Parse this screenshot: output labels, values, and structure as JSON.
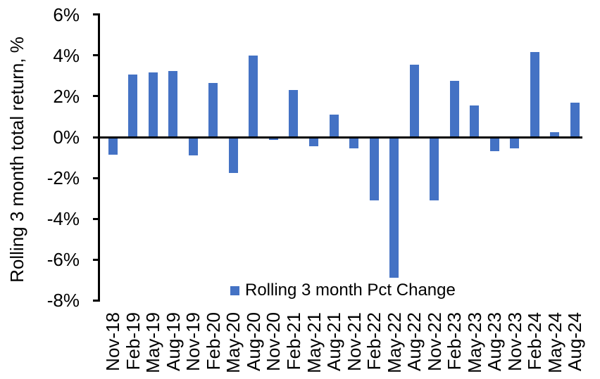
{
  "chart_data": {
    "type": "bar",
    "title": "",
    "ylabel": "Rolling 3 month total return, %",
    "xlabel": "",
    "legend": "Rolling 3 month Pct Change",
    "legend_position": "bottom-center-inside",
    "grid": false,
    "ylim": [
      -8,
      6
    ],
    "ytick_values": [
      6,
      4,
      2,
      0,
      -2,
      -4,
      -6,
      -8
    ],
    "ytick_labels": [
      "6%",
      "4%",
      "2%",
      "0%",
      "-2%",
      "-4%",
      "-6%",
      "-8%"
    ],
    "categories": [
      "Nov-18",
      "Feb-19",
      "May-19",
      "Aug-19",
      "Nov-19",
      "Feb-20",
      "May-20",
      "Aug-20",
      "Nov-20",
      "Feb-21",
      "May-21",
      "Aug-21",
      "Nov-21",
      "Feb-22",
      "May-22",
      "Aug-22",
      "Nov-22",
      "Feb-23",
      "May-23",
      "Aug-23",
      "Nov-23",
      "Feb-24",
      "May-24",
      "Aug-24"
    ],
    "values": [
      -0.85,
      3.05,
      3.15,
      3.25,
      -0.9,
      2.65,
      -1.75,
      4.0,
      -0.15,
      2.3,
      -0.45,
      1.1,
      -0.55,
      -3.1,
      -6.9,
      3.55,
      -3.1,
      2.75,
      1.55,
      -0.7,
      -0.55,
      4.15,
      0.25,
      1.7
    ],
    "series": [
      {
        "name": "Rolling 3 month Pct Change"
      }
    ],
    "bar_color": "#4472C4",
    "axis_color": "#000000",
    "background_color": "#FFFFFF"
  }
}
